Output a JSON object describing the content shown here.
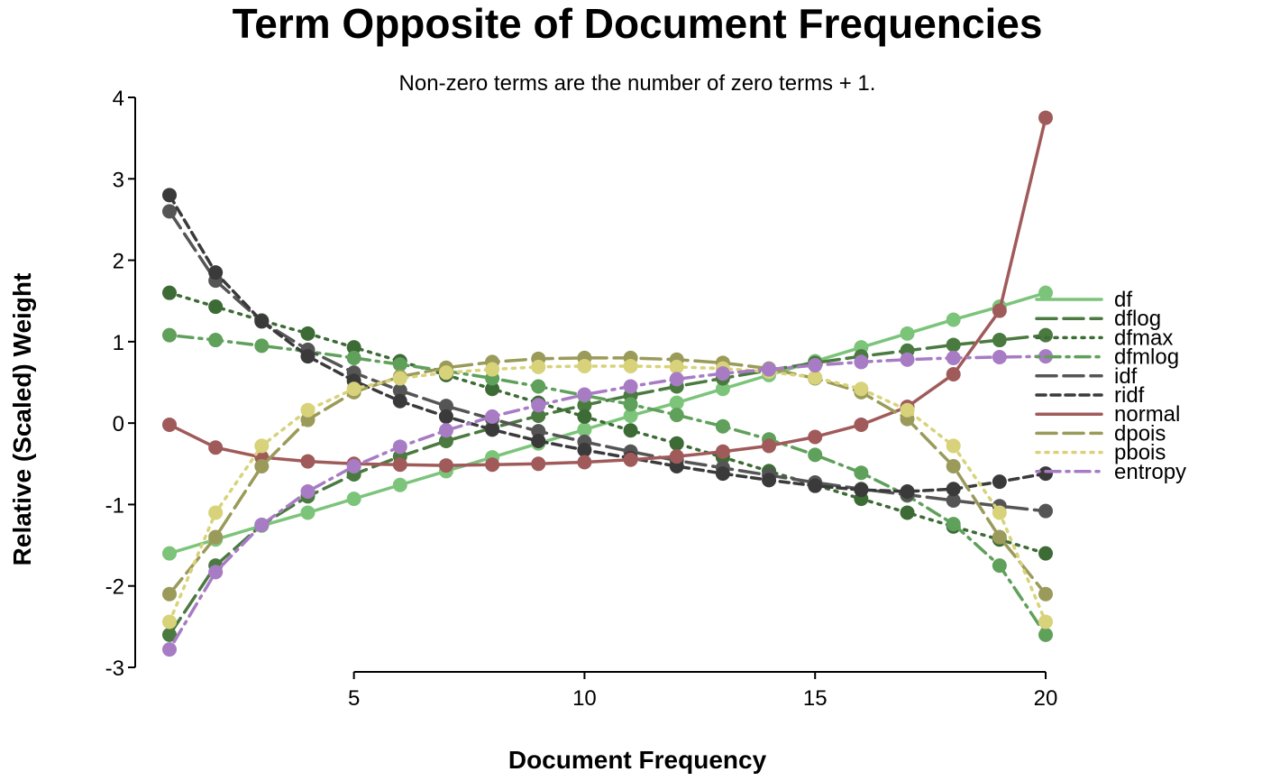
{
  "chart_data": {
    "type": "line",
    "title": "Term Opposite of Document Frequencies",
    "subtitle": "Non-zero terms are the number of zero terms + 1.",
    "xlabel": "Document Frequency",
    "ylabel": "Relative (Scaled) Weight",
    "xlim": [
      1,
      20
    ],
    "ylim": [
      -3,
      4
    ],
    "xticks": [
      5,
      10,
      15,
      20
    ],
    "yticks": [
      -3,
      -2,
      -1,
      0,
      1,
      2,
      3,
      4
    ],
    "grid": false,
    "legend_position": "right",
    "x": [
      1,
      2,
      3,
      4,
      5,
      6,
      7,
      8,
      9,
      10,
      11,
      12,
      13,
      14,
      15,
      16,
      17,
      18,
      19,
      20
    ],
    "series": [
      {
        "name": "df",
        "color": "#7cc47a",
        "dash": "solid",
        "values": [
          -1.6,
          -1.43,
          -1.26,
          -1.1,
          -0.93,
          -0.76,
          -0.59,
          -0.42,
          -0.25,
          -0.08,
          0.09,
          0.25,
          0.42,
          0.59,
          0.76,
          0.93,
          1.1,
          1.27,
          1.43,
          1.6
        ]
      },
      {
        "name": "dflog",
        "color": "#4a7a40",
        "dash": "longdash",
        "values": [
          -2.6,
          -1.75,
          -1.25,
          -0.9,
          -0.63,
          -0.41,
          -0.22,
          -0.06,
          0.09,
          0.22,
          0.34,
          0.45,
          0.55,
          0.65,
          0.74,
          0.82,
          0.89,
          0.96,
          1.02,
          1.08
        ]
      },
      {
        "name": "dfmax",
        "color": "#3d6b35",
        "dash": "dotted",
        "values": [
          1.6,
          1.43,
          1.26,
          1.1,
          0.93,
          0.76,
          0.59,
          0.42,
          0.25,
          0.08,
          -0.09,
          -0.25,
          -0.42,
          -0.59,
          -0.76,
          -0.93,
          -1.1,
          -1.27,
          -1.43,
          -1.6
        ]
      },
      {
        "name": "dfmlog",
        "color": "#5fa05a",
        "dash": "dotdash",
        "values": [
          1.08,
          1.02,
          0.95,
          0.88,
          0.8,
          0.72,
          0.64,
          0.55,
          0.45,
          0.34,
          0.23,
          0.1,
          -0.04,
          -0.2,
          -0.39,
          -0.61,
          -0.89,
          -1.24,
          -1.75,
          -2.6
        ]
      },
      {
        "name": "idf",
        "color": "#555555",
        "dash": "longdash",
        "values": [
          2.6,
          1.75,
          1.25,
          0.9,
          0.62,
          0.4,
          0.21,
          0.05,
          -0.1,
          -0.23,
          -0.35,
          -0.46,
          -0.55,
          -0.64,
          -0.73,
          -0.81,
          -0.88,
          -0.95,
          -1.02,
          -1.08
        ]
      },
      {
        "name": "ridf",
        "color": "#3a3a3a",
        "dash": "shortdash",
        "values": [
          2.8,
          1.85,
          1.25,
          0.82,
          0.52,
          0.27,
          0.08,
          -0.08,
          -0.22,
          -0.33,
          -0.43,
          -0.53,
          -0.62,
          -0.7,
          -0.77,
          -0.82,
          -0.84,
          -0.81,
          -0.72,
          -0.62
        ]
      },
      {
        "name": "normal",
        "color": "#a05a5a",
        "dash": "solid",
        "values": [
          -0.02,
          -0.3,
          -0.42,
          -0.47,
          -0.5,
          -0.51,
          -0.52,
          -0.51,
          -0.5,
          -0.48,
          -0.45,
          -0.41,
          -0.35,
          -0.28,
          -0.17,
          -0.02,
          0.2,
          0.6,
          1.38,
          3.75
        ]
      },
      {
        "name": "dpois",
        "color": "#9a9a5a",
        "dash": "longdash",
        "values": [
          -2.1,
          -1.4,
          -0.53,
          0.04,
          0.38,
          0.57,
          0.68,
          0.75,
          0.79,
          0.8,
          0.8,
          0.78,
          0.74,
          0.67,
          0.55,
          0.38,
          0.05,
          -0.53,
          -1.4,
          -2.1
        ]
      },
      {
        "name": "pbois",
        "color": "#d8d27a",
        "dash": "dotted",
        "values": [
          -2.44,
          -1.1,
          -0.28,
          0.16,
          0.42,
          0.55,
          0.62,
          0.66,
          0.69,
          0.7,
          0.7,
          0.69,
          0.67,
          0.63,
          0.56,
          0.42,
          0.16,
          -0.28,
          -1.1,
          -2.44
        ]
      },
      {
        "name": "entropy",
        "color": "#a77cc4",
        "dash": "dotdash",
        "values": [
          -2.78,
          -1.83,
          -1.25,
          -0.84,
          -0.53,
          -0.29,
          -0.09,
          0.08,
          0.22,
          0.35,
          0.45,
          0.54,
          0.61,
          0.66,
          0.71,
          0.75,
          0.78,
          0.8,
          0.81,
          0.82
        ]
      }
    ]
  }
}
